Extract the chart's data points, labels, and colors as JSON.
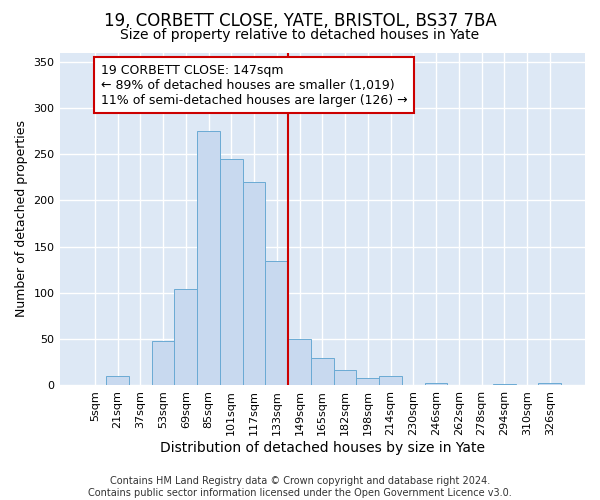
{
  "title": "19, CORBETT CLOSE, YATE, BRISTOL, BS37 7BA",
  "subtitle": "Size of property relative to detached houses in Yate",
  "xlabel": "Distribution of detached houses by size in Yate",
  "ylabel": "Number of detached properties",
  "categories": [
    "5sqm",
    "21sqm",
    "37sqm",
    "53sqm",
    "69sqm",
    "85sqm",
    "101sqm",
    "117sqm",
    "133sqm",
    "149sqm",
    "165sqm",
    "182sqm",
    "198sqm",
    "214sqm",
    "230sqm",
    "246sqm",
    "262sqm",
    "278sqm",
    "294sqm",
    "310sqm",
    "326sqm"
  ],
  "values": [
    0,
    10,
    0,
    48,
    104,
    275,
    245,
    220,
    135,
    50,
    30,
    17,
    8,
    10,
    0,
    3,
    0,
    0,
    2,
    0,
    3
  ],
  "bar_color": "#c8d9ef",
  "bar_edge_color": "#6aaad4",
  "vline_x_idx": 9,
  "vline_color": "#cc0000",
  "annotation_text": "19 CORBETT CLOSE: 147sqm\n← 89% of detached houses are smaller (1,019)\n11% of semi-detached houses are larger (126) →",
  "annotation_box_color": "#ffffff",
  "annotation_box_edge_color": "#cc0000",
  "footer": "Contains HM Land Registry data © Crown copyright and database right 2024.\nContains public sector information licensed under the Open Government Licence v3.0.",
  "ylim": [
    0,
    360
  ],
  "yticks": [
    0,
    50,
    100,
    150,
    200,
    250,
    300,
    350
  ],
  "fig_background_color": "#ffffff",
  "plot_background_color": "#dde8f5",
  "grid_color": "#ffffff",
  "title_fontsize": 12,
  "subtitle_fontsize": 10,
  "xlabel_fontsize": 10,
  "ylabel_fontsize": 9,
  "tick_fontsize": 8,
  "footer_fontsize": 7,
  "annotation_fontsize": 9
}
